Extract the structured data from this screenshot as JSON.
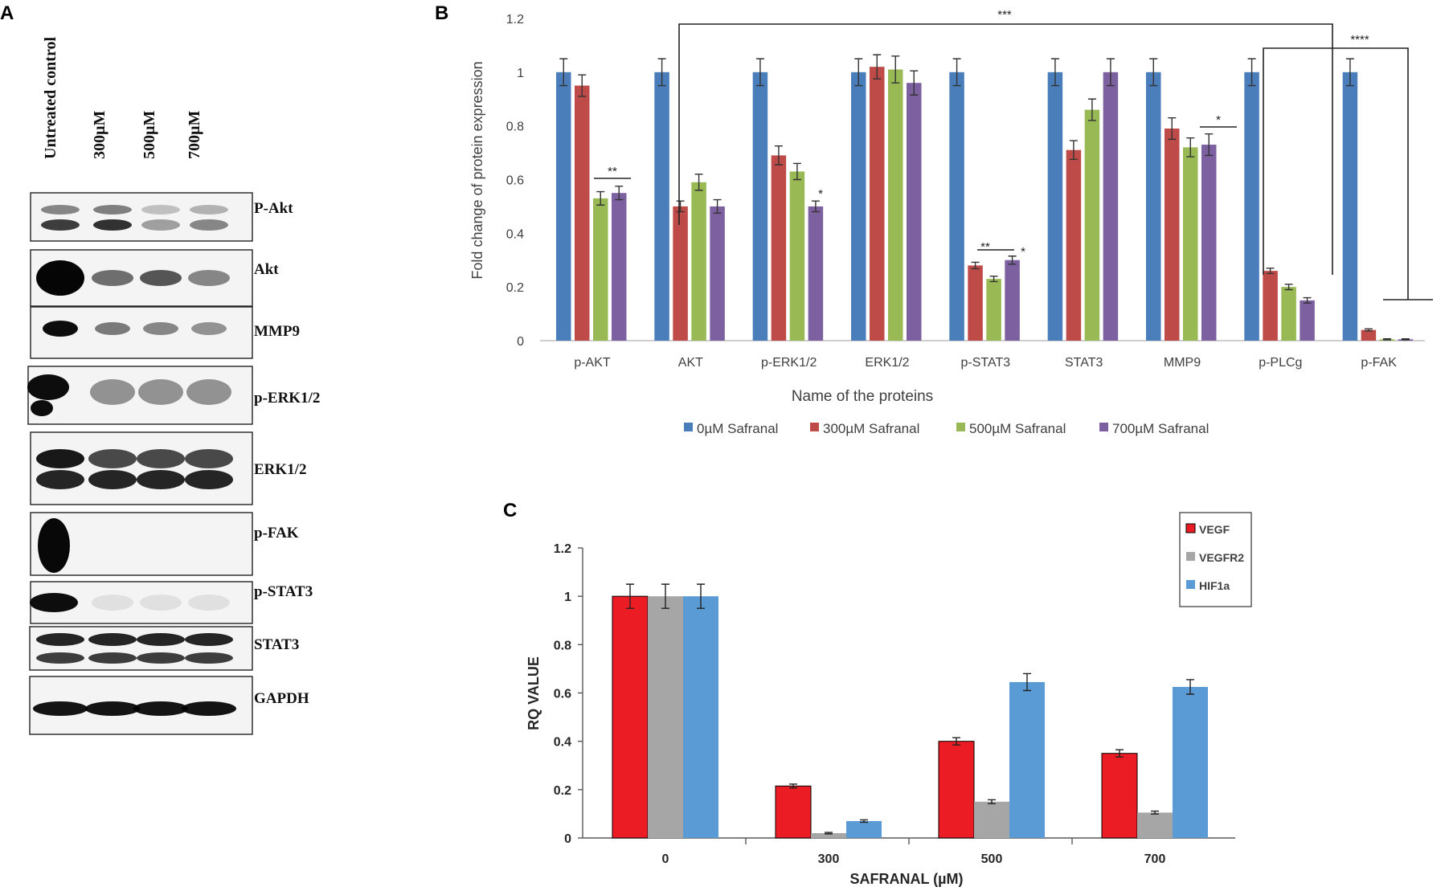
{
  "panels": {
    "a": "A",
    "b": "B",
    "c": "C"
  },
  "panel_a": {
    "lanes": [
      "Untreated control",
      "300µM",
      "500µM",
      "700µM"
    ],
    "blots": [
      "P-Akt",
      "Akt",
      "MMP9",
      "p-ERK1/2",
      "ERK1/2",
      "p-FAK",
      "p-STAT3",
      "STAT3",
      "GAPDH"
    ]
  },
  "chart_data": [
    {
      "type": "bar",
      "title": "",
      "xlabel": "Name of the proteins",
      "ylabel": "Fold change of protein expression",
      "ylim": [
        0,
        1.2
      ],
      "yticks": [
        "0",
        "0.2",
        "0.4",
        "0.6",
        "0.8",
        "1",
        "1.2"
      ],
      "categories": [
        "p-AKT",
        "AKT",
        "p-ERK1/2",
        "ERK1/2",
        "p-STAT3",
        "STAT3",
        "MMP9",
        "p-PLCg",
        "p-FAK"
      ],
      "series": [
        {
          "name": "0µM Safranal",
          "color": "#4a7ebb",
          "values": [
            1,
            1,
            1,
            1,
            1,
            1,
            1,
            1,
            1
          ],
          "errors": [
            0.05,
            0.05,
            0.05,
            0.05,
            0.05,
            0.05,
            0.05,
            0.05,
            0.05
          ]
        },
        {
          "name": "300µM  Safranal",
          "color": "#be4b48",
          "values": [
            0.95,
            0.5,
            0.69,
            1.02,
            0.28,
            0.71,
            0.79,
            0.26,
            0.04
          ],
          "errors": [
            0.04,
            0.02,
            0.035,
            0.045,
            0.012,
            0.035,
            0.04,
            0.01,
            0.004
          ]
        },
        {
          "name": "500µM  Safranal",
          "color": "#98b954",
          "values": [
            0.53,
            0.59,
            0.63,
            1.01,
            0.23,
            0.86,
            0.72,
            0.2,
            0.005
          ],
          "errors": [
            0.025,
            0.03,
            0.03,
            0.05,
            0.01,
            0.04,
            0.035,
            0.01,
            0.002
          ]
        },
        {
          "name": "700µM  Safranal",
          "color": "#7d60a0",
          "values": [
            0.55,
            0.5,
            0.5,
            0.96,
            0.3,
            1,
            0.73,
            0.15,
            0.005
          ],
          "errors": [
            0.025,
            0.025,
            0.02,
            0.045,
            0.015,
            0.05,
            0.04,
            0.01,
            0.002
          ]
        }
      ],
      "annotations": [
        "**",
        "***",
        "*",
        "**",
        "*",
        "*",
        "****"
      ]
    },
    {
      "type": "bar",
      "title": "",
      "xlabel": "SAFRANAL (µM)",
      "ylabel": "RQ VALUE",
      "ylim": [
        0,
        1.2
      ],
      "yticks": [
        "0",
        "0.2",
        "0.4",
        "0.6",
        "0.8",
        "1",
        "1.2"
      ],
      "categories": [
        "0",
        "300",
        "500",
        "700"
      ],
      "series": [
        {
          "name": "VEGF",
          "color": "#ec1c24",
          "values": [
            1,
            0.215,
            0.4,
            0.35
          ],
          "errors": [
            0.05,
            0.008,
            0.015,
            0.015
          ]
        },
        {
          "name": "VEGFR2",
          "color": "#a6a6a6",
          "values": [
            1,
            0.02,
            0.15,
            0.105
          ],
          "errors": [
            0.05,
            0.003,
            0.008,
            0.006
          ]
        },
        {
          "name": "HIF1a",
          "color": "#5b9bd5",
          "values": [
            1,
            0.07,
            0.645,
            0.625
          ],
          "errors": [
            0.05,
            0.005,
            0.035,
            0.03
          ]
        }
      ]
    }
  ]
}
